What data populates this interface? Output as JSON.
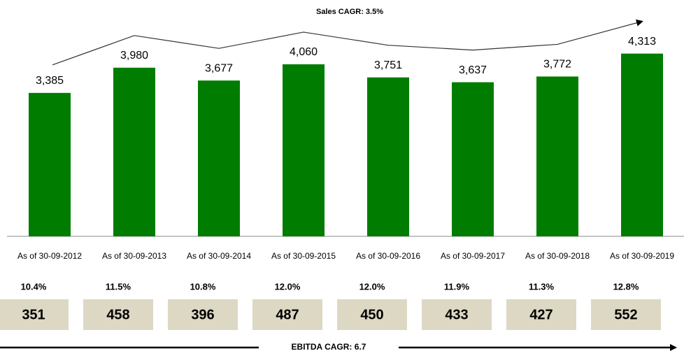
{
  "chart_data": {
    "type": "bar",
    "title": "Sales CAGR: 3.5%",
    "categories": [
      "As of 30-09-2012",
      "As of 30-09-2013",
      "As of 30-09-2014",
      "As of 30-09-2015",
      "As of 30-09-2016",
      "As of 30-09-2017",
      "As of 30-09-2018",
      "As of 30-09-2019"
    ],
    "values": [
      3385,
      3980,
      3677,
      4060,
      3751,
      3637,
      3772,
      4313
    ],
    "value_labels": [
      "3,385",
      "3,980",
      "3,677",
      "4,060",
      "3,751",
      "3,637",
      "3,772",
      "4,313"
    ],
    "color": "#007d00",
    "ebitda_margin": {
      "values": [
        10.4,
        11.5,
        10.8,
        12.0,
        12.0,
        11.9,
        11.3,
        12.8
      ],
      "value_labels": [
        "10.4%",
        "11.5%",
        "10.8%",
        "12.0%",
        "12.0%",
        "11.9%",
        "11.3%",
        "12.8%"
      ]
    },
    "ebitda": [
      351,
      458,
      396,
      487,
      450,
      433,
      427,
      552
    ],
    "ebitda_title": "EBITDA CAGR: 6.7"
  }
}
